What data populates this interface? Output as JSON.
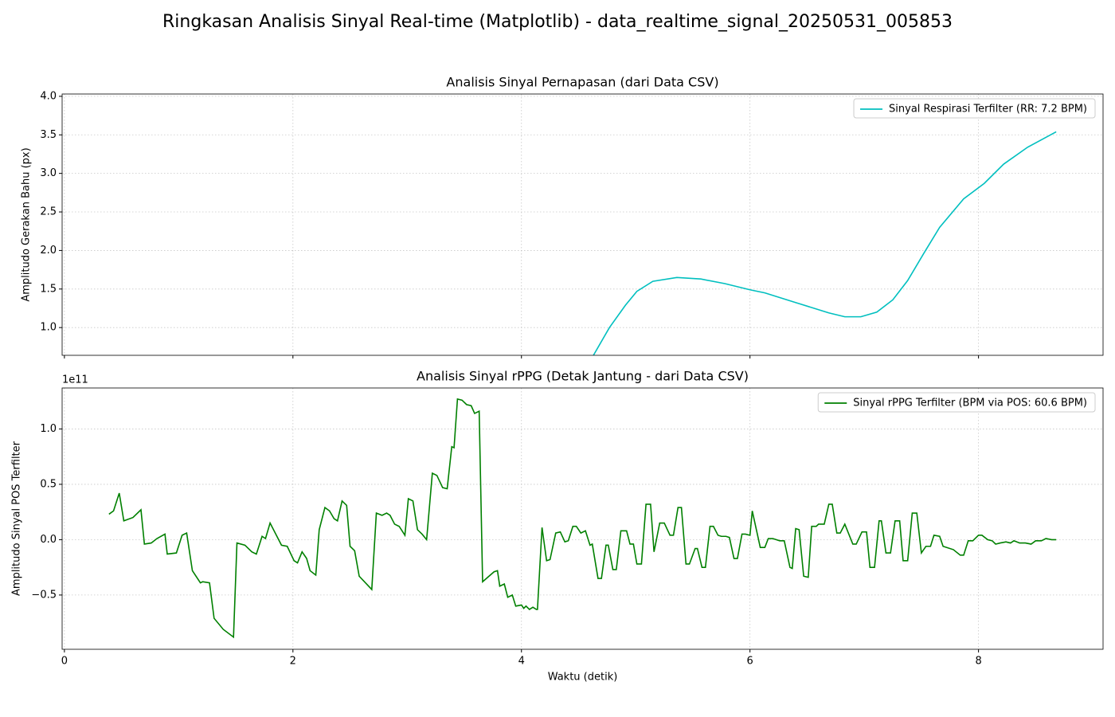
{
  "title": "Ringkasan Analisis Sinyal Real-time (Matplotlib) - data_realtime_signal_20250531_005853",
  "chart_data": [
    {
      "type": "line",
      "title": "Analisis Sinyal Pernapasan (dari Data CSV)",
      "ylabel": "Amplitudo Gerakan Bahu (px)",
      "x": [
        4.63,
        4.77,
        4.91,
        5.01,
        5.15,
        5.36,
        5.57,
        5.78,
        6.0,
        6.13,
        6.41,
        6.69,
        6.83,
        6.97,
        7.11,
        7.25,
        7.38,
        7.52,
        7.66,
        7.87,
        8.05,
        8.22,
        8.43,
        8.68
      ],
      "series": [
        {
          "name": "Sinyal Respirasi Terfilter (RR: 7.2 BPM)",
          "color": "#00bfbf",
          "values": [
            0.64,
            1.0,
            1.29,
            1.47,
            1.6,
            1.65,
            1.63,
            1.57,
            1.49,
            1.45,
            1.32,
            1.19,
            1.14,
            1.14,
            1.2,
            1.36,
            1.61,
            1.96,
            2.3,
            2.67,
            2.87,
            3.12,
            3.34,
            3.54
          ]
        }
      ],
      "xlim": [
        -0.02,
        9.09
      ],
      "ylim": [
        0.64,
        4.03
      ],
      "xticks": [
        0,
        2,
        4,
        6,
        8
      ],
      "yticks": [
        {
          "value": 1,
          "label": "1.0"
        },
        1.5,
        {
          "value": 2,
          "label": "2.0"
        },
        2.5,
        {
          "value": 3,
          "label": "3.0"
        },
        3.5,
        {
          "value": 4,
          "label": "4.0"
        }
      ],
      "grid": true,
      "legend": "upper right"
    },
    {
      "type": "line",
      "title": "Analisis Sinyal rPPG (Detak Jantung - dari Data CSV)",
      "xlabel": "Waktu (detik)",
      "ylabel": "Amplitudo Sinyal POS Terfilter",
      "offset_label": "1e11",
      "x": [
        0.39,
        0.43,
        0.48,
        0.52,
        0.6,
        0.67,
        0.7,
        0.76,
        0.81,
        0.88,
        0.9,
        0.98,
        1.03,
        1.07,
        1.12,
        1.19,
        1.21,
        1.27,
        1.31,
        1.39,
        1.48,
        1.51,
        1.58,
        1.64,
        1.68,
        1.73,
        1.76,
        1.8,
        1.9,
        1.95,
        2.01,
        2.04,
        2.08,
        2.12,
        2.15,
        2.2,
        2.23,
        2.28,
        2.32,
        2.36,
        2.39,
        2.43,
        2.47,
        2.5,
        2.54,
        2.58,
        2.69,
        2.73,
        2.78,
        2.82,
        2.85,
        2.89,
        2.93,
        2.98,
        3.01,
        3.05,
        3.09,
        3.13,
        3.17,
        3.22,
        3.26,
        3.31,
        3.35,
        3.39,
        3.41,
        3.44,
        3.48,
        3.52,
        3.56,
        3.59,
        3.63,
        3.66,
        3.76,
        3.79,
        3.81,
        3.85,
        3.88,
        3.92,
        3.95,
        4.0,
        4.02,
        4.04,
        4.07,
        4.1,
        4.13,
        4.14,
        4.18,
        4.22,
        4.25,
        4.3,
        4.34,
        4.38,
        4.41,
        4.45,
        4.48,
        4.52,
        4.56,
        4.6,
        4.62,
        4.67,
        4.7,
        4.74,
        4.76,
        4.8,
        4.83,
        4.87,
        4.92,
        4.95,
        4.98,
        5.01,
        5.05,
        5.09,
        5.13,
        5.16,
        5.21,
        5.25,
        5.3,
        5.33,
        5.37,
        5.4,
        5.44,
        5.47,
        5.52,
        5.54,
        5.58,
        5.61,
        5.65,
        5.68,
        5.72,
        5.75,
        5.79,
        5.82,
        5.86,
        5.89,
        5.93,
        5.96,
        6.0,
        6.02,
        6.09,
        6.13,
        6.16,
        6.2,
        6.26,
        6.3,
        6.35,
        6.37,
        6.4,
        6.43,
        6.47,
        6.51,
        6.54,
        6.58,
        6.6,
        6.65,
        6.69,
        6.72,
        6.76,
        6.79,
        6.83,
        6.9,
        6.93,
        6.98,
        7.02,
        7.05,
        7.09,
        7.13,
        7.15,
        7.19,
        7.23,
        7.27,
        7.31,
        7.34,
        7.38,
        7.42,
        7.46,
        7.5,
        7.54,
        7.58,
        7.61,
        7.66,
        7.69,
        7.78,
        7.84,
        7.87,
        7.91,
        7.95,
        8.0,
        8.03,
        8.08,
        8.12,
        8.15,
        8.19,
        8.24,
        8.28,
        8.31,
        8.36,
        8.41,
        8.46,
        8.5,
        8.55,
        8.59,
        8.64,
        8.68
      ],
      "series": [
        {
          "name": "Sinyal rPPG Terfilter (BPM via POS: 60.6 BPM)",
          "color": "#008000",
          "values": [
            0.23,
            0.26,
            0.42,
            0.17,
            0.2,
            0.27,
            -0.04,
            -0.03,
            0.01,
            0.05,
            -0.13,
            -0.12,
            0.04,
            0.06,
            -0.28,
            -0.39,
            -0.38,
            -0.39,
            -0.71,
            -0.81,
            -0.88,
            -0.03,
            -0.05,
            -0.11,
            -0.13,
            0.03,
            0.01,
            0.15,
            -0.05,
            -0.06,
            -0.19,
            -0.21,
            -0.11,
            -0.17,
            -0.28,
            -0.32,
            0.09,
            0.29,
            0.26,
            0.19,
            0.17,
            0.35,
            0.31,
            -0.06,
            -0.1,
            -0.33,
            -0.45,
            0.24,
            0.22,
            0.24,
            0.22,
            0.14,
            0.12,
            0.04,
            0.37,
            0.35,
            0.09,
            0.05,
            0.0,
            0.6,
            0.58,
            0.47,
            0.46,
            0.84,
            0.83,
            1.27,
            1.26,
            1.22,
            1.21,
            1.14,
            1.16,
            -0.38,
            -0.29,
            -0.28,
            -0.42,
            -0.4,
            -0.52,
            -0.5,
            -0.6,
            -0.59,
            -0.62,
            -0.6,
            -0.63,
            -0.61,
            -0.63,
            -0.63,
            0.11,
            -0.19,
            -0.18,
            0.06,
            0.07,
            -0.02,
            -0.01,
            0.12,
            0.12,
            0.06,
            0.08,
            -0.05,
            -0.04,
            -0.35,
            -0.35,
            -0.05,
            -0.05,
            -0.27,
            -0.27,
            0.08,
            0.08,
            -0.04,
            -0.04,
            -0.22,
            -0.22,
            0.32,
            0.32,
            -0.11,
            0.15,
            0.15,
            0.04,
            0.04,
            0.29,
            0.29,
            -0.22,
            -0.22,
            -0.08,
            -0.08,
            -0.25,
            -0.25,
            0.12,
            0.12,
            0.04,
            0.03,
            0.03,
            0.02,
            -0.17,
            -0.17,
            0.05,
            0.05,
            0.04,
            0.26,
            -0.07,
            -0.07,
            0.01,
            0.01,
            -0.01,
            -0.01,
            -0.25,
            -0.26,
            0.1,
            0.09,
            -0.33,
            -0.34,
            0.12,
            0.12,
            0.14,
            0.14,
            0.32,
            0.32,
            0.06,
            0.06,
            0.14,
            -0.04,
            -0.04,
            0.07,
            0.07,
            -0.25,
            -0.25,
            0.17,
            0.17,
            -0.12,
            -0.12,
            0.17,
            0.17,
            -0.19,
            -0.19,
            0.24,
            0.24,
            -0.12,
            -0.06,
            -0.06,
            0.04,
            0.03,
            -0.06,
            -0.09,
            -0.14,
            -0.14,
            -0.01,
            -0.01,
            0.04,
            0.04,
            0.0,
            -0.01,
            -0.04,
            -0.03,
            -0.02,
            -0.03,
            -0.01,
            -0.03,
            -0.03,
            -0.04,
            -0.01,
            -0.01,
            0.01,
            0.0,
            0.0
          ]
        }
      ],
      "xlim": [
        -0.02,
        9.09
      ],
      "ylim": [
        -0.99,
        1.37
      ],
      "xticks": [
        0,
        2,
        4,
        6,
        8
      ],
      "yticks": [
        {
          "value": -0.5,
          "label": "−0.5"
        },
        {
          "value": 0,
          "label": "0.0"
        },
        0.5,
        {
          "value": 1,
          "label": "1.0"
        }
      ],
      "grid": true,
      "legend": "upper right"
    }
  ]
}
